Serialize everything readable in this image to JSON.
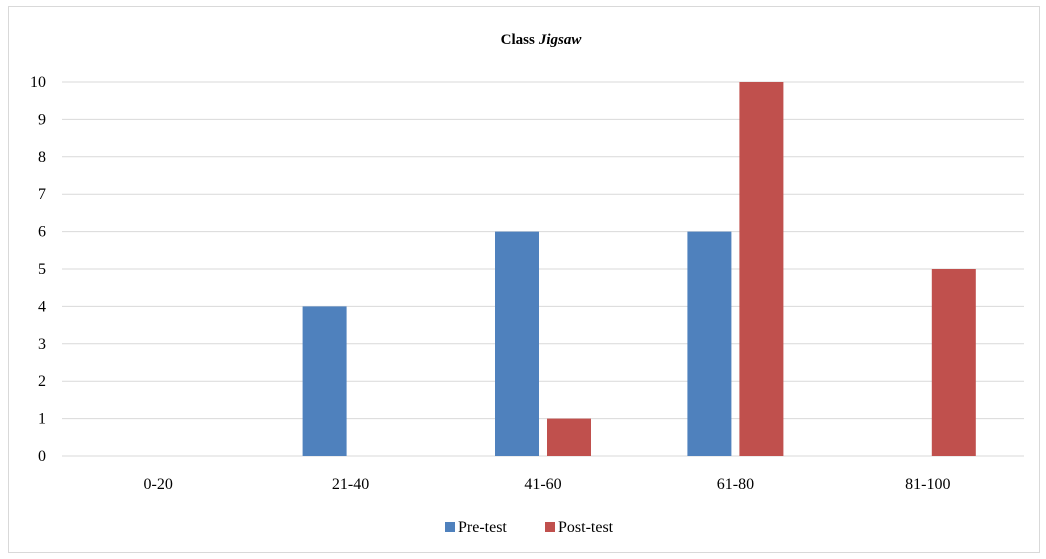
{
  "chart_data": {
    "type": "bar",
    "title": "Class",
    "title_italic": "Jigsaw",
    "xlabel": "",
    "ylabel": "",
    "categories": [
      "0-20",
      "21-40",
      "41-60",
      "61-80",
      "81-100"
    ],
    "series": [
      {
        "name": "Pre-test",
        "values": [
          0,
          4,
          6,
          6,
          0
        ],
        "color": "#4f81bd"
      },
      {
        "name": "Post-test",
        "values": [
          0,
          0,
          1,
          10,
          5
        ],
        "color": "#c0504d"
      }
    ],
    "ylim": [
      0,
      10
    ],
    "yticks": [
      "0",
      "1",
      "2",
      "3",
      "4",
      "5",
      "6",
      "7",
      "8",
      "9",
      "10"
    ],
    "grid": true,
    "gridline_color": "#d9d9d9",
    "legend_position": "bottom"
  }
}
